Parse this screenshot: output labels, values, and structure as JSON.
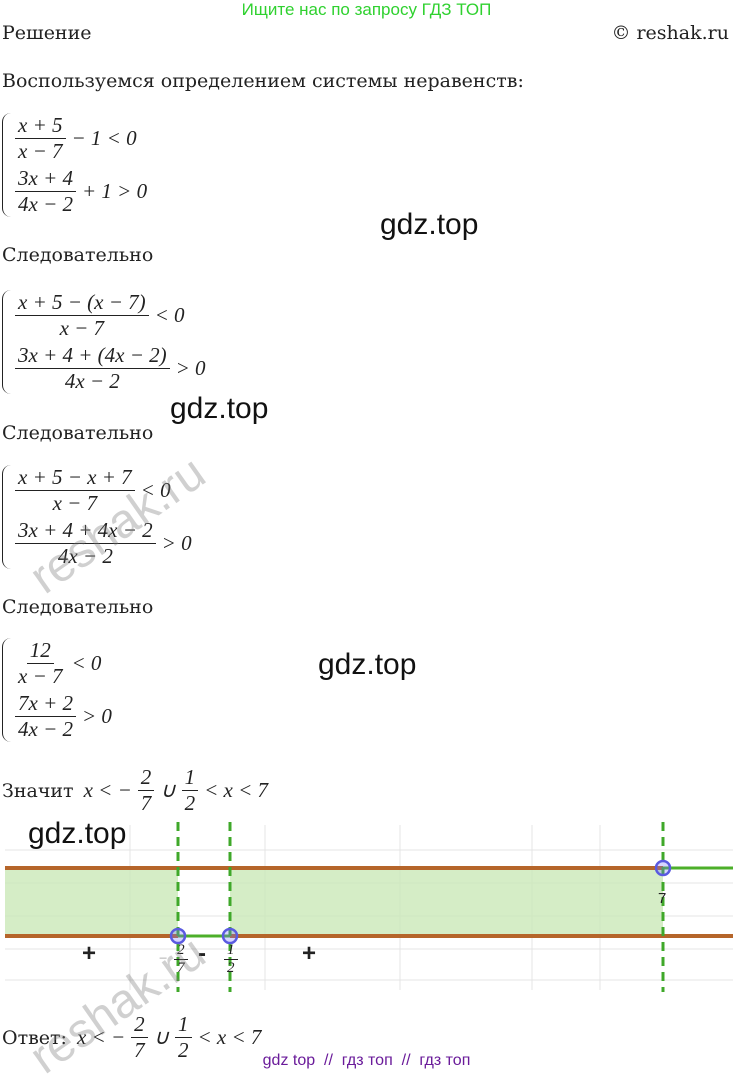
{
  "header": {
    "search_hint": "Ищите нас по запросу ГДЗ ТОП",
    "section": "Решение",
    "copyright": "© reshak.ru"
  },
  "intro": "Воспользуемся определением системы неравенств:",
  "systems": [
    {
      "lines": [
        [
          {
            "num": "x + 5",
            "den": "x − 7"
          },
          {
            "t": "− 1 < 0"
          }
        ],
        [
          {
            "num": "3x + 4",
            "den": "4x − 2"
          },
          {
            "t": "+ 1 > 0"
          }
        ]
      ]
    },
    {
      "lines": [
        [
          {
            "num": "x + 5 − (x − 7)",
            "den": "x − 7"
          },
          {
            "t": "< 0"
          }
        ],
        [
          {
            "num": "3x + 4 + (4x − 2)",
            "den": "4x − 2"
          },
          {
            "t": "> 0"
          }
        ]
      ]
    },
    {
      "lines": [
        [
          {
            "num": "x + 5 − x + 7",
            "den": "x − 7"
          },
          {
            "t": "< 0"
          }
        ],
        [
          {
            "num": "3x + 4 + 4x − 2",
            "den": "4x − 2"
          },
          {
            "t": "> 0"
          }
        ]
      ]
    },
    {
      "lines": [
        [
          {
            "num": "12",
            "den": "x − 7"
          },
          {
            "t": "< 0"
          }
        ],
        [
          {
            "num": "7x + 2",
            "den": "4x − 2"
          },
          {
            "t": "> 0"
          }
        ]
      ]
    }
  ],
  "connectors": [
    "Следовательно",
    "Следовательно",
    "Следовательно"
  ],
  "conclusion": [
    {
      "w": "Значит"
    },
    {
      "t": "x < −"
    },
    {
      "num": "2",
      "den": "7"
    },
    {
      "t": "∪"
    },
    {
      "num": "1",
      "den": "2"
    },
    {
      "t": "< x < 7"
    }
  ],
  "graph": {
    "signs": [
      "+",
      "-",
      "+"
    ],
    "point_labels": [
      {
        "num": "2",
        "den": "7",
        "sign": "−"
      },
      {
        "num": "1",
        "den": "2"
      },
      {
        "t": "7"
      }
    ]
  },
  "answer": [
    {
      "w": "Ответ:"
    },
    {
      "t": "x < −"
    },
    {
      "num": "2",
      "den": "7"
    },
    {
      "t": "∪"
    },
    {
      "num": "1",
      "den": "2"
    },
    {
      "t": "< x < 7"
    }
  ],
  "watermarks": [
    "gdz.top",
    "gdz.top",
    "gdz.top",
    "gdz.top"
  ],
  "reshak_watermarks": [
    "reshak.ru",
    "reshak.ru"
  ],
  "footer": "gdz top  //  гдз топ  //  гдз топ"
}
